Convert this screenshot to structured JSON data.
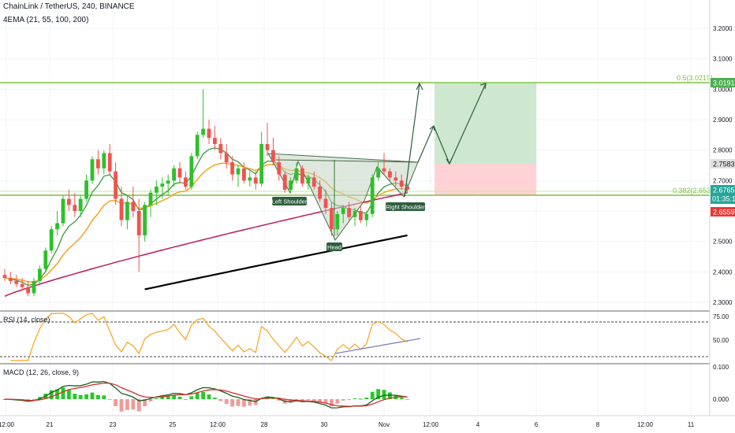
{
  "header": {
    "title": "ChainLink / TetherUS, 240, BINANCE",
    "indicator": "4EMA (21, 55, 100, 200)"
  },
  "rsi": {
    "label": "RSI (14, close)",
    "ticks": [
      "75.00",
      "50.00"
    ]
  },
  "macd": {
    "label": "MACD (12, 26, close, 9)",
    "ticks": [
      "0.100",
      "0.000"
    ]
  },
  "annotations": {
    "left_shoulder": "Left Shoulder",
    "head": "Head",
    "right_shoulder": "Right Shoulder"
  },
  "fib": {
    "f05": "0.5(3.0219)",
    "f0382": "0.382(2.6536)"
  },
  "price_badges": {
    "target": "3.0191",
    "entry": "2.7583",
    "current": "2.6765",
    "countdown": "01:35:15",
    "stop": "2.6559"
  },
  "colors": {
    "up": "#26a69a",
    "up_candle": "#2ec02a",
    "down": "#ef5350",
    "ema21": "#3a9a3a",
    "ema55": "#f6a21e",
    "ema100": "#c2185b",
    "ema200": "#000000",
    "rsi": "#f7a21b",
    "macd": "#1b5e20",
    "signal": "#d32f2f",
    "fib": "#7dc242",
    "profit": "#c8e6c9",
    "loss": "#ffcdd2"
  },
  "chart_data": {
    "type": "candlestick",
    "price_axis": {
      "ticks": [
        "3.2000",
        "3.1000",
        "3.0000",
        "2.9000",
        "2.8000",
        "2.7000",
        "2.6000",
        "2.5000",
        "2.4000",
        "2.3000"
      ],
      "range": [
        2.28,
        3.3
      ]
    },
    "time_axis": [
      "12:00",
      "21",
      "23",
      "25",
      "12:00",
      "28",
      "30",
      "Nov",
      "12:00",
      "4",
      "6",
      "8",
      "12:00",
      "11"
    ],
    "candles": [
      [
        2.39,
        2.41,
        2.37,
        2.38
      ],
      [
        2.38,
        2.4,
        2.36,
        2.37
      ],
      [
        2.37,
        2.39,
        2.35,
        2.36
      ],
      [
        2.36,
        2.38,
        2.34,
        2.35
      ],
      [
        2.35,
        2.37,
        2.32,
        2.33
      ],
      [
        2.33,
        2.38,
        2.32,
        2.37
      ],
      [
        2.37,
        2.42,
        2.36,
        2.41
      ],
      [
        2.41,
        2.48,
        2.4,
        2.47
      ],
      [
        2.47,
        2.55,
        2.46,
        2.54
      ],
      [
        2.54,
        2.6,
        2.52,
        2.56
      ],
      [
        2.56,
        2.65,
        2.55,
        2.64
      ],
      [
        2.64,
        2.67,
        2.6,
        2.62
      ],
      [
        2.62,
        2.66,
        2.58,
        2.6
      ],
      [
        2.6,
        2.65,
        2.58,
        2.64
      ],
      [
        2.64,
        2.72,
        2.63,
        2.7
      ],
      [
        2.7,
        2.78,
        2.69,
        2.77
      ],
      [
        2.77,
        2.8,
        2.72,
        2.74
      ],
      [
        2.74,
        2.8,
        2.72,
        2.79
      ],
      [
        2.79,
        2.82,
        2.72,
        2.73
      ],
      [
        2.73,
        2.76,
        2.62,
        2.64
      ],
      [
        2.64,
        2.68,
        2.55,
        2.57
      ],
      [
        2.57,
        2.65,
        2.54,
        2.63
      ],
      [
        2.63,
        2.68,
        2.58,
        2.6
      ],
      [
        2.6,
        2.64,
        2.4,
        2.52
      ],
      [
        2.52,
        2.63,
        2.5,
        2.62
      ],
      [
        2.62,
        2.67,
        2.58,
        2.66
      ],
      [
        2.66,
        2.7,
        2.62,
        2.68
      ],
      [
        2.68,
        2.71,
        2.64,
        2.69
      ],
      [
        2.69,
        2.72,
        2.65,
        2.7
      ],
      [
        2.7,
        2.75,
        2.68,
        2.74
      ],
      [
        2.74,
        2.76,
        2.69,
        2.71
      ],
      [
        2.71,
        2.73,
        2.67,
        2.68
      ],
      [
        2.68,
        2.79,
        2.67,
        2.78
      ],
      [
        2.78,
        2.86,
        2.77,
        2.85
      ],
      [
        2.85,
        3.0,
        2.84,
        2.87
      ],
      [
        2.87,
        2.9,
        2.82,
        2.84
      ],
      [
        2.84,
        2.88,
        2.8,
        2.82
      ],
      [
        2.82,
        2.84,
        2.77,
        2.79
      ],
      [
        2.79,
        2.82,
        2.74,
        2.76
      ],
      [
        2.76,
        2.78,
        2.7,
        2.72
      ],
      [
        2.72,
        2.75,
        2.68,
        2.74
      ],
      [
        2.74,
        2.76,
        2.69,
        2.7
      ],
      [
        2.7,
        2.73,
        2.68,
        2.71
      ],
      [
        2.71,
        2.73,
        2.67,
        2.69
      ],
      [
        2.69,
        2.86,
        2.68,
        2.82
      ],
      [
        2.82,
        2.89,
        2.78,
        2.8
      ],
      [
        2.8,
        2.84,
        2.75,
        2.76
      ],
      [
        2.76,
        2.78,
        2.7,
        2.72
      ],
      [
        2.72,
        2.73,
        2.66,
        2.67
      ],
      [
        2.67,
        2.71,
        2.66,
        2.7
      ],
      [
        2.7,
        2.76,
        2.69,
        2.74
      ],
      [
        2.74,
        2.75,
        2.68,
        2.69
      ],
      [
        2.69,
        2.72,
        2.67,
        2.71
      ],
      [
        2.71,
        2.73,
        2.67,
        2.68
      ],
      [
        2.68,
        2.7,
        2.63,
        2.64
      ],
      [
        2.64,
        2.67,
        2.59,
        2.61
      ],
      [
        2.61,
        2.63,
        2.52,
        2.54
      ],
      [
        2.54,
        2.6,
        2.52,
        2.59
      ],
      [
        2.59,
        2.62,
        2.56,
        2.61
      ],
      [
        2.61,
        2.63,
        2.57,
        2.58
      ],
      [
        2.58,
        2.61,
        2.55,
        2.6
      ],
      [
        2.6,
        2.62,
        2.56,
        2.57
      ],
      [
        2.57,
        2.6,
        2.55,
        2.59
      ],
      [
        2.59,
        2.72,
        2.58,
        2.71
      ],
      [
        2.71,
        2.76,
        2.7,
        2.74
      ],
      [
        2.74,
        2.79,
        2.72,
        2.73
      ],
      [
        2.73,
        2.74,
        2.7,
        2.71
      ],
      [
        2.71,
        2.73,
        2.68,
        2.7
      ],
      [
        2.7,
        2.72,
        2.67,
        2.68
      ],
      [
        2.68,
        2.69,
        2.66,
        2.67
      ]
    ],
    "pattern": "inverse head and shoulders",
    "projection": {
      "target": 3.0191,
      "entry": 2.7583,
      "stop": 2.6559
    },
    "rsi_range": [
      20,
      80
    ],
    "macd_range": [
      -0.05,
      0.11
    ]
  }
}
